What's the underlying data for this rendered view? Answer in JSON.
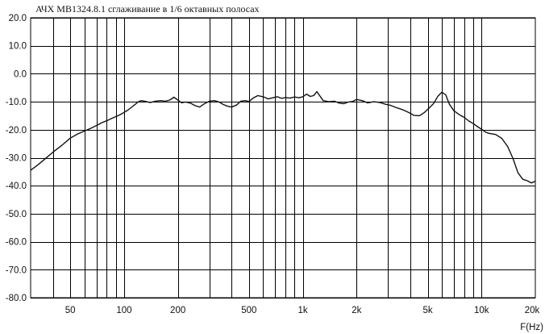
{
  "chart_data": {
    "type": "line",
    "title": "АЧХ   MB1324.8.1 сглаживание в 1/6 октавных полосах",
    "xlabel": "F(Hz)",
    "ylabel": "",
    "x_scale": "log",
    "xlim": [
      30,
      20000
    ],
    "ylim": [
      -80,
      20
    ],
    "grid": true,
    "y_ticks": [
      {
        "value": 20,
        "label": "20.0"
      },
      {
        "value": 10,
        "label": "10.0"
      },
      {
        "value": 0,
        "label": "0.0"
      },
      {
        "value": -10,
        "label": "-10.0"
      },
      {
        "value": -20,
        "label": "-20.0"
      },
      {
        "value": -30,
        "label": "-30.0"
      },
      {
        "value": -40,
        "label": "-40.0"
      },
      {
        "value": -50,
        "label": "-50.0"
      },
      {
        "value": -60,
        "label": "-60.0"
      },
      {
        "value": -70,
        "label": "-70.0"
      },
      {
        "value": -80,
        "label": "-80.0"
      }
    ],
    "x_ticks": [
      {
        "value": 50,
        "label": "50"
      },
      {
        "value": 100,
        "label": "100"
      },
      {
        "value": 200,
        "label": "200"
      },
      {
        "value": 500,
        "label": "500"
      },
      {
        "value": 1000,
        "label": "1k"
      },
      {
        "value": 2000,
        "label": "2k"
      },
      {
        "value": 5000,
        "label": "5k"
      },
      {
        "value": 10000,
        "label": "10k"
      },
      {
        "value": 20000,
        "label": "20k"
      }
    ],
    "x_grid_minor": [
      40,
      50,
      60,
      70,
      80,
      90,
      200,
      300,
      400,
      500,
      600,
      700,
      800,
      900,
      2000,
      3000,
      4000,
      5000,
      6000,
      7000,
      8000,
      9000
    ],
    "x_grid_major": [
      100,
      1000,
      10000
    ],
    "series": [
      {
        "x": [
          30,
          33,
          36,
          40,
          45,
          50,
          55,
          60,
          65,
          70,
          75,
          80,
          85,
          90,
          95,
          100,
          105,
          110,
          115,
          120,
          125,
          130,
          140,
          150,
          160,
          170,
          180,
          190,
          200,
          210,
          220,
          235,
          250,
          265,
          280,
          300,
          320,
          340,
          360,
          380,
          400,
          425,
          450,
          475,
          500,
          530,
          560,
          600,
          640,
          680,
          720,
          760,
          800,
          850,
          900,
          950,
          1000,
          1050,
          1100,
          1150,
          1200,
          1300,
          1400,
          1500,
          1600,
          1700,
          1800,
          1900,
          2000,
          2150,
          2300,
          2500,
          2700,
          2900,
          3100,
          3300,
          3600,
          3900,
          4200,
          4500,
          4800,
          5100,
          5400,
          5700,
          6000,
          6300,
          6600,
          7000,
          7500,
          8000,
          8500,
          9000,
          9500,
          10000,
          10500,
          11000,
          12000,
          13000,
          14000,
          15000,
          16000,
          17000,
          18000,
          19000,
          20000
        ],
        "y": [
          -34.5,
          -32.5,
          -30.5,
          -28,
          -25.5,
          -23,
          -21.5,
          -20.5,
          -19.5,
          -18.5,
          -17.5,
          -16.8,
          -16,
          -15.3,
          -14.6,
          -13.8,
          -13,
          -12,
          -11,
          -10,
          -9.6,
          -9.8,
          -10.3,
          -9.8,
          -9.6,
          -9.8,
          -9.4,
          -8.4,
          -9.4,
          -10.4,
          -10.1,
          -10.5,
          -11.4,
          -11.9,
          -10.8,
          -9.8,
          -9.6,
          -10.1,
          -11,
          -11.6,
          -11.9,
          -11.2,
          -9.8,
          -9.6,
          -9.9,
          -8.6,
          -7.8,
          -8.2,
          -9,
          -8.6,
          -8.2,
          -8.8,
          -8.5,
          -8.7,
          -8.3,
          -8.6,
          -8.2,
          -7.3,
          -8.1,
          -7.8,
          -6.4,
          -9.6,
          -10,
          -9.8,
          -10.5,
          -10.7,
          -10.1,
          -9.9,
          -9.2,
          -9.6,
          -10.4,
          -10,
          -10.3,
          -10.9,
          -11.3,
          -12,
          -12.8,
          -13.8,
          -14.9,
          -15,
          -13.8,
          -12.2,
          -10.6,
          -8,
          -6.6,
          -7.5,
          -10.8,
          -13.2,
          -14.6,
          -15.6,
          -16.9,
          -17.8,
          -18.9,
          -19.8,
          -20.8,
          -21.3,
          -21.7,
          -23.1,
          -26,
          -30.3,
          -35.4,
          -37.7,
          -38.2,
          -39,
          -38.4
        ]
      }
    ]
  }
}
